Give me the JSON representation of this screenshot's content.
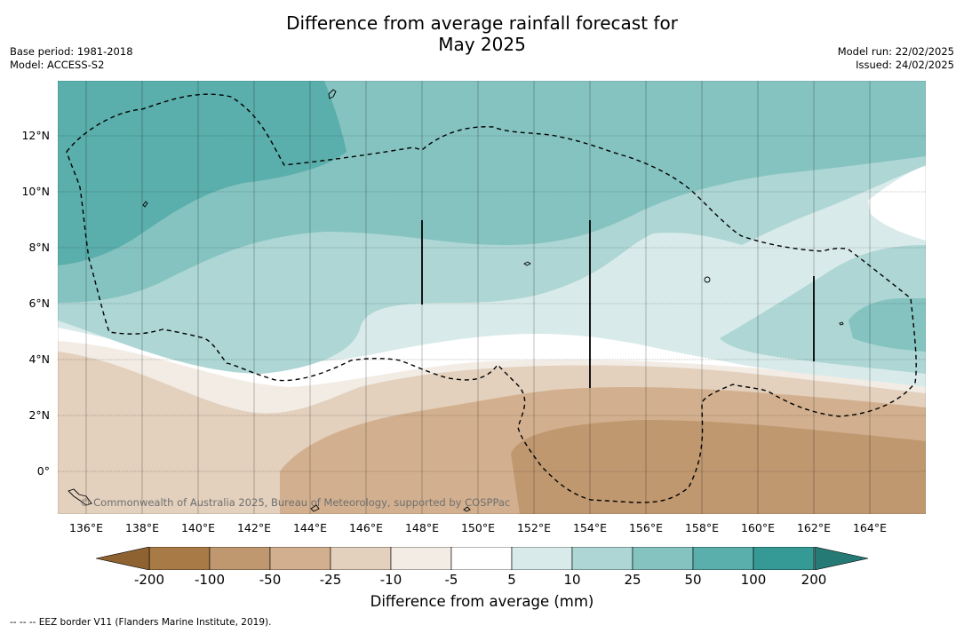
{
  "title_line1": "Difference from average rainfall forecast for",
  "title_line2": "May 2025",
  "base_period": "Base period: 1981-2018",
  "model": "Model: ACCESS-S2",
  "model_run": "Model run: 22/02/2025",
  "issued": "Issued: 24/02/2025",
  "copyright": "© Commonwealth of Australia 2025, Bureau of Meteorology, supported by COSPPac",
  "lat_labels": [
    "12°N",
    "10°N",
    "8°N",
    "6°N",
    "4°N",
    "2°N",
    "0°"
  ],
  "lon_labels": [
    "136°E",
    "138°E",
    "140°E",
    "142°E",
    "144°E",
    "146°E",
    "148°E",
    "150°E",
    "152°E",
    "154°E",
    "156°E",
    "158°E",
    "160°E",
    "162°E",
    "164°E"
  ],
  "colorbar": {
    "title": "Difference from average (mm)",
    "labels": [
      "-200",
      "-100",
      "-50",
      "-25",
      "-10",
      "-5",
      "5",
      "10",
      "25",
      "50",
      "100",
      "200"
    ],
    "colors": [
      "#a87a45",
      "#bf9870",
      "#d2b08f",
      "#e3d0bd",
      "#f2ece5",
      "#ffffff",
      "#d8ebea",
      "#add6d4",
      "#85c3c1",
      "#5aaeab",
      "#359a96"
    ],
    "low_extend_color": "#8f6232",
    "high_extend_color": "#257a76"
  },
  "footnote": "--  --  -- EEZ border V11 (Flanders Marine Institute, 2019)."
}
